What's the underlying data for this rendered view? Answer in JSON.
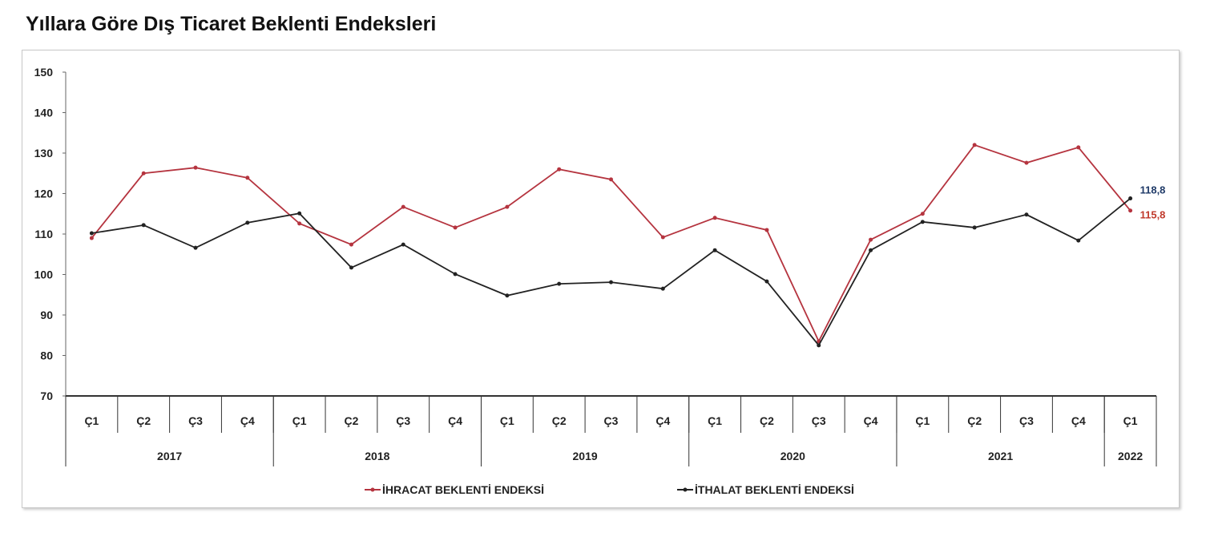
{
  "chart_data": {
    "type": "line",
    "title": "Yıllara Göre Dış Ticaret Beklenti Endeksleri",
    "xlabel": "",
    "ylabel": "",
    "ylim": [
      70,
      150
    ],
    "yticks": [
      70,
      80,
      90,
      100,
      110,
      120,
      130,
      140,
      150
    ],
    "categories": [
      "Ç1",
      "Ç2",
      "Ç3",
      "Ç4",
      "Ç1",
      "Ç2",
      "Ç3",
      "Ç4",
      "Ç1",
      "Ç2",
      "Ç3",
      "Ç4",
      "Ç1",
      "Ç2",
      "Ç3",
      "Ç4",
      "Ç1",
      "Ç2",
      "Ç3",
      "Ç4",
      "Ç1"
    ],
    "years": [
      {
        "label": "2017",
        "quarters": 4
      },
      {
        "label": "2018",
        "quarters": 4
      },
      {
        "label": "2019",
        "quarters": 4
      },
      {
        "label": "2020",
        "quarters": 4
      },
      {
        "label": "2021",
        "quarters": 4
      },
      {
        "label": "2022",
        "quarters": 1
      }
    ],
    "series": [
      {
        "name": "İHRACAT BEKLENTİ ENDEKSİ",
        "color": "#b5343f",
        "values": [
          109.0,
          125.0,
          126.4,
          123.9,
          112.6,
          107.4,
          116.7,
          111.6,
          116.7,
          126.0,
          123.5,
          109.2,
          114.0,
          111.0,
          83.5,
          108.6,
          115.0,
          132.0,
          127.6,
          131.4,
          115.8
        ],
        "end_label": "115,8",
        "end_label_color": "#c0392b"
      },
      {
        "name": "İTHALAT BEKLENTİ ENDEKSİ",
        "color": "#222222",
        "values": [
          110.2,
          112.2,
          106.6,
          112.8,
          115.1,
          101.7,
          107.4,
          100.1,
          94.8,
          97.7,
          98.1,
          96.5,
          106.0,
          98.3,
          82.5,
          106.0,
          113.0,
          111.6,
          114.8,
          108.4,
          118.8
        ],
        "end_label": "118,8",
        "end_label_color": "#1f3a68"
      }
    ],
    "grid": false,
    "legend": "bottom-center"
  }
}
